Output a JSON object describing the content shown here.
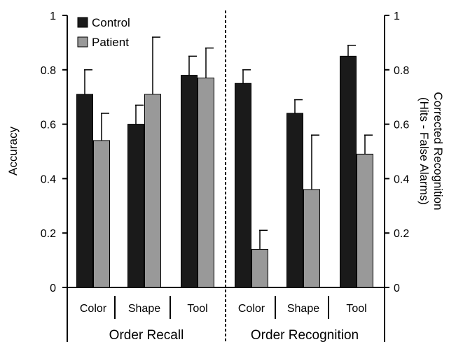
{
  "chart_data": {
    "type": "bar",
    "ylabel_left": "Accuracy",
    "ylabel_right_line1": "Corrected Recognition",
    "ylabel_right_line2": "(Hits - False Alarms)",
    "ylim": [
      0,
      1
    ],
    "left_ticks": [
      "0",
      "0.2",
      "0.4",
      "0.6",
      "0.8",
      "1"
    ],
    "right_ticks": [
      "0",
      "0.2",
      "0.4",
      "0.6",
      "0.8",
      "1"
    ],
    "categories": [
      "Color",
      "Shape",
      "Tool",
      "Color",
      "Shape",
      "Tool"
    ],
    "groups": [
      {
        "label": "Order Recall",
        "categories": [
          0,
          1,
          2
        ]
      },
      {
        "label": "Order Recognition",
        "categories": [
          3,
          4,
          5
        ]
      }
    ],
    "series": [
      {
        "name": "Control",
        "color": "#1a1a1a",
        "values": [
          0.71,
          0.6,
          0.78,
          0.75,
          0.64,
          0.85
        ],
        "errors": [
          0.09,
          0.07,
          0.07,
          0.05,
          0.05,
          0.04
        ]
      },
      {
        "name": "Patient",
        "color": "#999999",
        "values": [
          0.54,
          0.71,
          0.77,
          0.14,
          0.36,
          0.49
        ],
        "errors": [
          0.1,
          0.21,
          0.11,
          0.07,
          0.2,
          0.07
        ]
      }
    ],
    "grid": false,
    "legend_position": "top-left",
    "divider": "dashed vertical line between groups"
  }
}
